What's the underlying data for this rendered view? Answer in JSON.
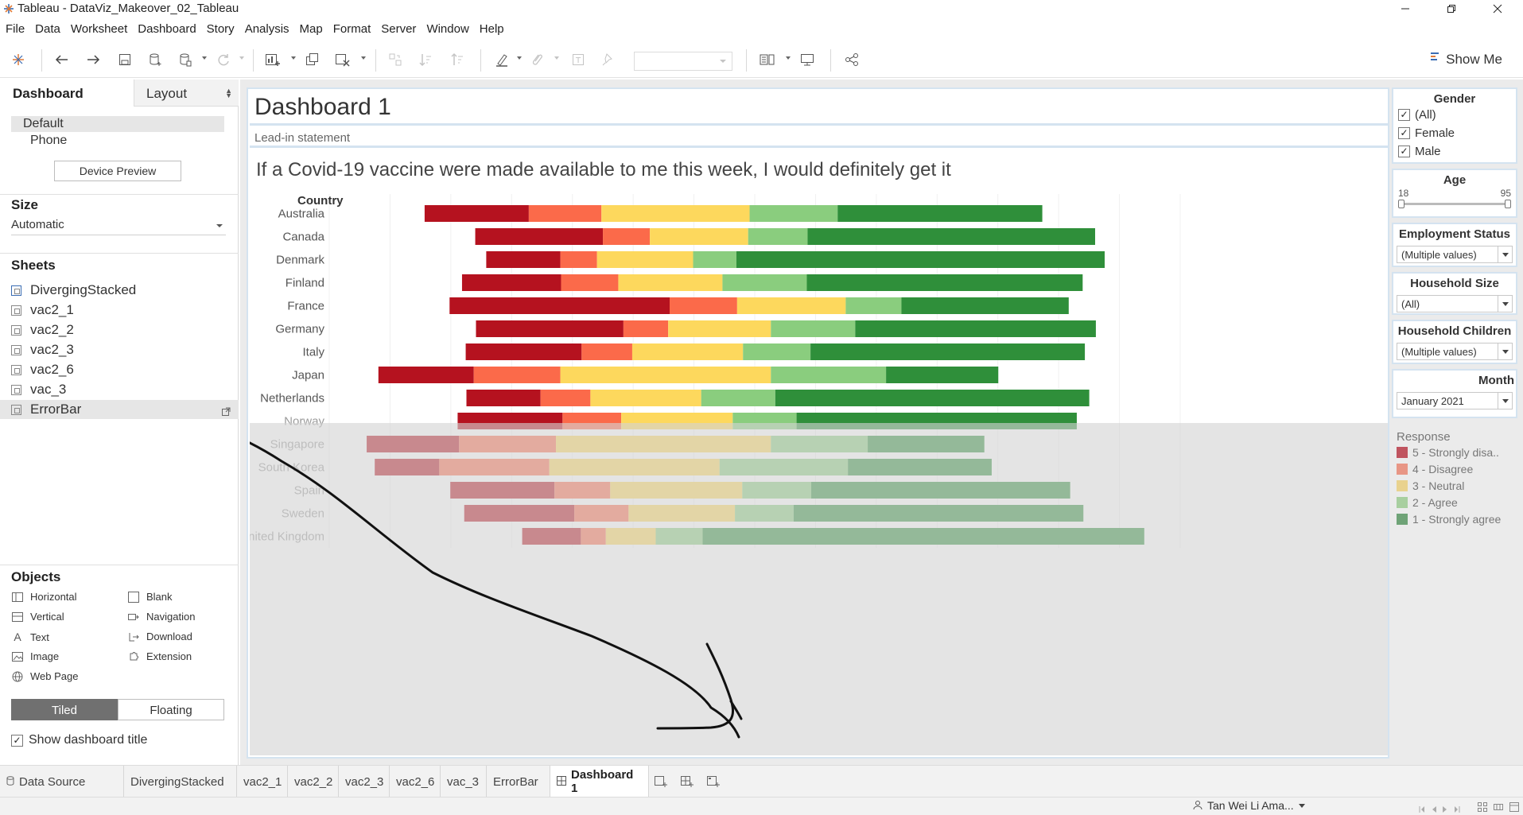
{
  "window": {
    "title": "Tableau - DataViz_Makeover_02_Tableau"
  },
  "menu": [
    "File",
    "Data",
    "Worksheet",
    "Dashboard",
    "Story",
    "Analysis",
    "Map",
    "Format",
    "Server",
    "Window",
    "Help"
  ],
  "toolbar": {
    "show_me": "Show Me"
  },
  "left_panel": {
    "tab_dashboard": "Dashboard",
    "tab_layout": "Layout",
    "devices": {
      "default": "Default",
      "phone": "Phone",
      "preview_button": "Device Preview"
    },
    "size": {
      "title": "Size",
      "value": "Automatic"
    },
    "sheets": {
      "title": "Sheets",
      "items": [
        "DivergingStacked",
        "vac2_1",
        "vac2_2",
        "vac2_3",
        "vac2_6",
        "vac_3",
        "ErrorBar"
      ]
    },
    "objects": {
      "title": "Objects",
      "items": [
        "Horizontal",
        "Blank",
        "Vertical",
        "Navigation",
        "Text",
        "Download",
        "Image",
        "Extension",
        "Web Page"
      ]
    },
    "tiled": "Tiled",
    "floating": "Floating",
    "show_title": "Show dashboard title",
    "show_title_checked": "✓"
  },
  "dashboard": {
    "title": "Dashboard 1",
    "lead_in": "Lead-in statement"
  },
  "chart_data": {
    "type": "bar",
    "title": "If a Covid-19 vaccine were made available to me this week, I would definitely get it",
    "row_header": "Country",
    "categories": [
      "Australia",
      "Canada",
      "Denmark",
      "Finland",
      "France",
      "Germany",
      "Italy",
      "Japan",
      "Netherlands",
      "Norway",
      "Singapore",
      "South Korea",
      "Spain",
      "Sweden",
      "United Kingdom"
    ],
    "series": [
      {
        "name": "5 - Strongly disa..",
        "color": "#b5121f",
        "values": [
          14.2,
          17.4,
          10.1,
          13.5,
          30.0,
          20.1,
          15.8,
          13.0,
          10.1,
          14.3,
          12.6,
          8.8,
          14.2,
          15.0,
          8.0
        ]
      },
      {
        "name": "4 - Disagree",
        "color": "#fb6a4a",
        "values": [
          9.9,
          6.4,
          5.0,
          7.8,
          9.2,
          6.1,
          6.9,
          11.8,
          6.8,
          8.0,
          13.2,
          15.0,
          7.6,
          7.4,
          3.4
        ]
      },
      {
        "name": "3 - Neutral",
        "color": "#fdd85d",
        "values": [
          20.2,
          13.4,
          13.1,
          14.2,
          14.8,
          14.0,
          15.1,
          28.7,
          15.1,
          15.2,
          29.3,
          23.2,
          18.0,
          14.5,
          6.8
        ]
      },
      {
        "name": "2 - Agree",
        "color": "#8acd7e",
        "values": [
          12.0,
          8.1,
          5.9,
          11.5,
          7.6,
          11.5,
          9.2,
          15.7,
          10.1,
          8.7,
          13.2,
          17.5,
          9.4,
          8.0,
          6.4
        ]
      },
      {
        "name": "1 - Strongly agree",
        "color": "#2f8f3a",
        "values": [
          27.9,
          39.2,
          50.2,
          37.6,
          22.8,
          32.8,
          37.4,
          15.3,
          42.8,
          38.2,
          15.9,
          19.6,
          35.3,
          39.5,
          60.2
        ]
      }
    ],
    "bar_start": [
      13.0,
      19.9,
      21.4,
      18.1,
      16.4,
      20.0,
      18.6,
      6.7,
      18.7,
      17.5,
      5.1,
      6.2,
      16.5,
      18.4,
      26.3
    ],
    "highlighted_rows": 9,
    "xlim": [
      0,
      116
    ]
  },
  "filters": {
    "gender": {
      "title": "Gender",
      "options": [
        "(All)",
        "Female",
        "Male"
      ],
      "check": "✓"
    },
    "age": {
      "title": "Age",
      "min": "18",
      "max": "95"
    },
    "employment": {
      "title": "Employment Status",
      "value": "(Multiple values)"
    },
    "household_size": {
      "title": "Household Size",
      "value": "(All)"
    },
    "household_children": {
      "title": "Household Children",
      "value": "(Multiple values)"
    },
    "month": {
      "title": "Month",
      "value": "January 2021"
    }
  },
  "legend": {
    "title": "Response"
  },
  "bottom_tabs": {
    "data_source": "Data Source",
    "sheets": [
      "DivergingStacked",
      "vac2_1",
      "vac2_2",
      "vac2_3",
      "vac2_6",
      "vac_3",
      "ErrorBar"
    ],
    "active": "Dashboard 1"
  },
  "status": {
    "user": "Tan Wei Li Ama..."
  },
  "colors": {
    "accent_border": "#d4e3f0",
    "overlay": "#d4d4d4"
  }
}
